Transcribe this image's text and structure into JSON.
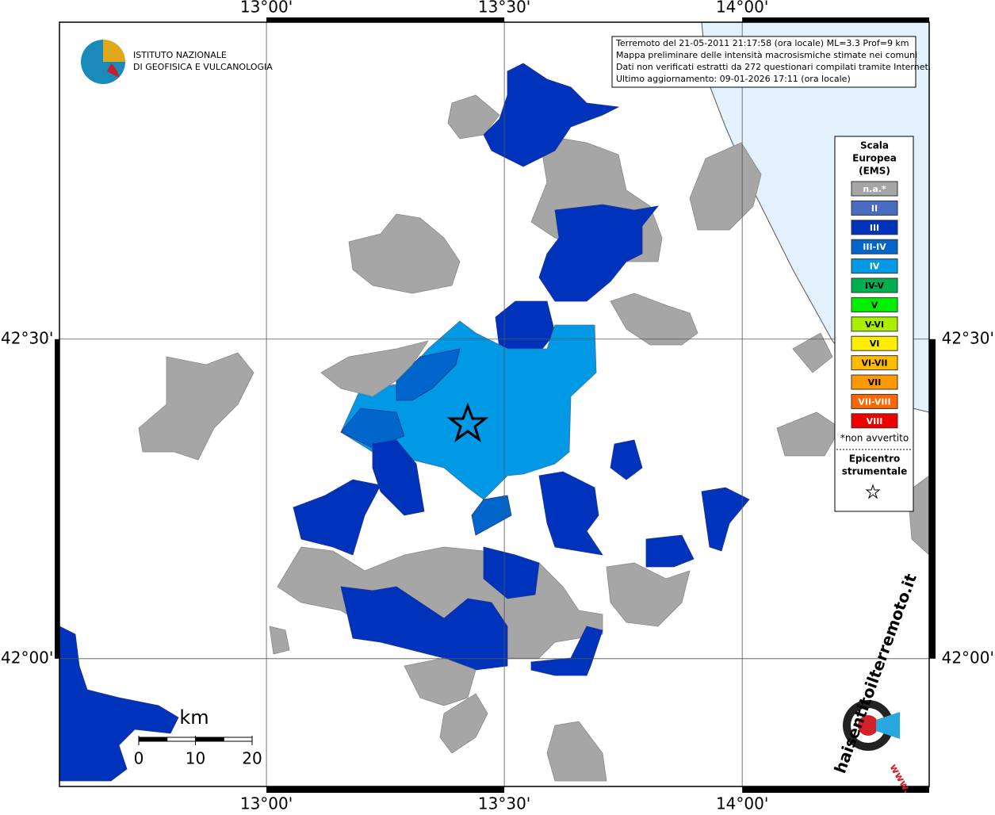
{
  "map": {
    "xlim": [
      12.565,
      14.393
    ],
    "ylim": [
      41.8,
      42.996
    ],
    "xticks": [
      {
        "value": 13.0,
        "label": "13°00'"
      },
      {
        "value": 13.5,
        "label": "13°30'"
      },
      {
        "value": 14.0,
        "label": "14°00'"
      }
    ],
    "yticks": [
      {
        "value": 42.5,
        "label": "42°30'"
      },
      {
        "value": 42.0,
        "label": "42°00'"
      }
    ]
  },
  "logo": {
    "line1": "ISTITUTO NAZIONALE",
    "line2": "DI GEOFISICA E VULCANOLOGIA"
  },
  "info": [
    "Terremoto del 21-05-2011 21:17:58 (ora locale) ML=3.3 Prof=9 km",
    "Mappa preliminare delle intensità macrosismiche stimate nei comuni",
    "Dati non verificati estratti da 272 questionari compilati tramite Internet.",
    "Ultimo aggiornamento: 09-01-2026 17:11 (ora locale)"
  ],
  "legend": {
    "title": [
      "Scala",
      "Europea",
      "(EMS)"
    ],
    "classes": [
      {
        "label": "n.a.*",
        "color": "#a6a6a6"
      },
      {
        "label": "II",
        "color": "#4a6cc0"
      },
      {
        "label": "III",
        "color": "#0033bb"
      },
      {
        "label": "III-IV",
        "color": "#0066cc"
      },
      {
        "label": "IV",
        "color": "#0099e6"
      },
      {
        "label": "IV-V",
        "color": "#00b050"
      },
      {
        "label": "V",
        "color": "#00ee00"
      },
      {
        "label": "V-VI",
        "color": "#aaee00"
      },
      {
        "label": "VI",
        "color": "#ffee00"
      },
      {
        "label": "VI-VII",
        "color": "#ffbb00"
      },
      {
        "label": "VII",
        "color": "#ff9900"
      },
      {
        "label": "VII-VIII",
        "color": "#ff6600"
      },
      {
        "label": "VIII",
        "color": "#ee0000"
      }
    ],
    "note": "*non avvertito",
    "epicenter": [
      "Epicentro",
      "strumentale"
    ]
  },
  "scale": {
    "unit": "km",
    "ticks": [
      0,
      10,
      20
    ]
  },
  "brand": {
    "text": "haisentitoilterremoto.it",
    "www": "www."
  }
}
